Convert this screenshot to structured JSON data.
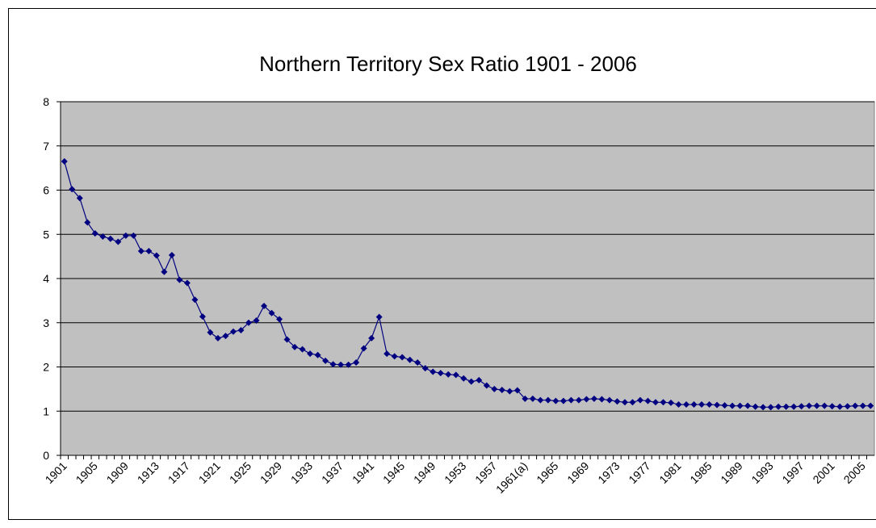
{
  "chart_data": {
    "type": "line",
    "title": "Northern Territory Sex Ratio 1901 - 2006",
    "categories": [
      "1901",
      null,
      null,
      null,
      "1905",
      null,
      null,
      null,
      "1909",
      null,
      null,
      null,
      "1913",
      null,
      null,
      null,
      "1917",
      null,
      null,
      null,
      "1921",
      null,
      null,
      null,
      "1925",
      null,
      null,
      null,
      "1929",
      null,
      null,
      null,
      "1933",
      null,
      null,
      null,
      "1937",
      null,
      null,
      null,
      "1941",
      null,
      null,
      null,
      "1945",
      null,
      null,
      null,
      "1949",
      null,
      null,
      null,
      "1953",
      null,
      null,
      null,
      "1957",
      null,
      null,
      null,
      "1961(a)",
      null,
      null,
      null,
      "1965",
      null,
      null,
      null,
      "1969",
      null,
      null,
      null,
      "1973",
      null,
      null,
      null,
      "1977",
      null,
      null,
      null,
      "1981",
      null,
      null,
      null,
      "1985",
      null,
      null,
      null,
      "1989",
      null,
      null,
      null,
      "1993",
      null,
      null,
      null,
      "1997",
      null,
      null,
      null,
      "2001",
      null,
      null,
      null,
      "2005",
      null
    ],
    "series": [
      {
        "color": "#000080",
        "values": [
          6.65,
          6.02,
          5.82,
          5.27,
          5.02,
          4.95,
          4.9,
          4.83,
          4.97,
          4.97,
          4.62,
          4.62,
          4.52,
          4.15,
          4.53,
          3.97,
          3.9,
          3.52,
          3.14,
          2.78,
          2.65,
          2.7,
          2.8,
          2.83,
          3.0,
          3.05,
          3.38,
          3.22,
          3.08,
          2.62,
          2.45,
          2.4,
          2.3,
          2.27,
          2.14,
          2.06,
          2.05,
          2.05,
          2.1,
          2.42,
          2.65,
          3.13,
          2.3,
          2.24,
          2.22,
          2.16,
          2.1,
          1.97,
          1.89,
          1.86,
          1.83,
          1.82,
          1.74,
          1.67,
          1.7,
          1.58,
          1.5,
          1.48,
          1.45,
          1.47,
          1.28,
          1.28,
          1.25,
          1.25,
          1.23,
          1.23,
          1.25,
          1.25,
          1.27,
          1.28,
          1.27,
          1.25,
          1.22,
          1.2,
          1.2,
          1.25,
          1.23,
          1.2,
          1.2,
          1.19,
          1.15,
          1.15,
          1.15,
          1.15,
          1.15,
          1.14,
          1.13,
          1.12,
          1.12,
          1.12,
          1.1,
          1.09,
          1.09,
          1.1,
          1.1,
          1.1,
          1.11,
          1.12,
          1.12,
          1.12,
          1.11,
          1.1,
          1.11,
          1.12,
          1.12,
          1.12
        ]
      }
    ],
    "ylim": [
      0,
      8
    ],
    "yticks": [
      0,
      1,
      2,
      3,
      4,
      5,
      6,
      7,
      8
    ],
    "grid": true,
    "plot_background": "#c0c0c0"
  }
}
